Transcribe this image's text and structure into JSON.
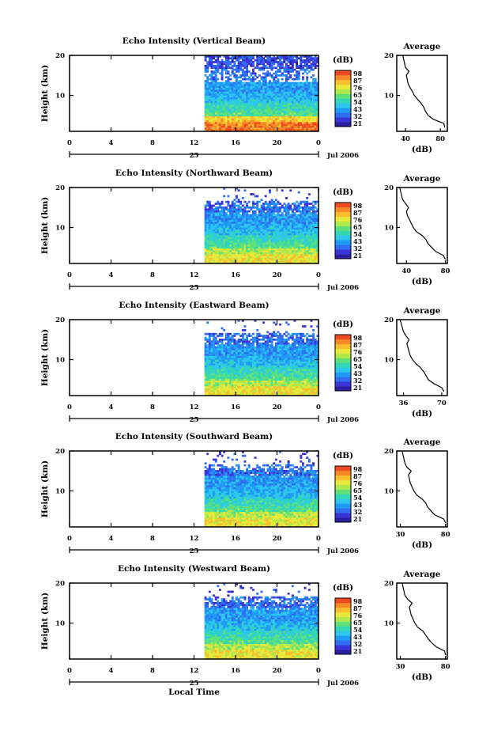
{
  "figure": {
    "xlabel": "Local Time",
    "day_label": "25",
    "month_label": "Jul 2006",
    "colorbar_unit": "(dB)"
  },
  "chart_data": [
    {
      "type": "heatmap",
      "title": "Echo Intensity (Vertical Beam)",
      "ylabel": "Height (km)",
      "x_ticks": [
        "0",
        "4",
        "8",
        "12",
        "16",
        "20",
        "0"
      ],
      "y_ticks": [
        "20",
        "10"
      ],
      "xlim": [
        0,
        24
      ],
      "ylim": [
        1,
        20
      ],
      "data_start_hour": 13,
      "colorbar_ticks": [
        "98",
        "87",
        "76",
        "65",
        "54",
        "43",
        "32",
        "21"
      ],
      "average": {
        "title": "Average",
        "xlabel": "(dB)",
        "x_ticks": [
          "40",
          "80"
        ],
        "y_ticks": [
          "20",
          "10"
        ],
        "xlim": [
          30,
          88
        ],
        "profile": [
          [
            2,
            85
          ],
          [
            3,
            84
          ],
          [
            4,
            72
          ],
          [
            5,
            66
          ],
          [
            6,
            63
          ],
          [
            7,
            61
          ],
          [
            8,
            58
          ],
          [
            9,
            54
          ],
          [
            10,
            50
          ],
          [
            11,
            48
          ],
          [
            12,
            45
          ],
          [
            13,
            43
          ],
          [
            14,
            42
          ],
          [
            15,
            41
          ],
          [
            16,
            44
          ],
          [
            17,
            40
          ],
          [
            18,
            39
          ],
          [
            19,
            38
          ],
          [
            20,
            37
          ]
        ]
      }
    },
    {
      "type": "heatmap",
      "title": "Echo Intensity (Northward Beam)",
      "ylabel": "Height (km)",
      "x_ticks": [
        "0",
        "4",
        "8",
        "12",
        "16",
        "20",
        "0"
      ],
      "y_ticks": [
        "20",
        "10"
      ],
      "xlim": [
        0,
        24
      ],
      "ylim": [
        1,
        20
      ],
      "data_start_hour": 13,
      "colorbar_ticks": [
        "98",
        "87",
        "76",
        "65",
        "54",
        "43",
        "32",
        "21"
      ],
      "average": {
        "title": "Average",
        "xlabel": "(dB)",
        "x_ticks": [
          "40",
          "80"
        ],
        "y_ticks": [
          "20",
          "10"
        ],
        "xlim": [
          30,
          82
        ],
        "profile": [
          [
            2,
            80
          ],
          [
            3,
            78
          ],
          [
            4,
            70
          ],
          [
            5,
            66
          ],
          [
            6,
            62
          ],
          [
            7,
            60
          ],
          [
            8,
            56
          ],
          [
            9,
            50
          ],
          [
            10,
            47
          ],
          [
            11,
            45
          ],
          [
            12,
            43
          ],
          [
            13,
            41
          ],
          [
            14,
            40
          ],
          [
            15,
            42
          ],
          [
            16,
            39
          ],
          [
            17,
            36
          ],
          [
            18,
            35
          ],
          [
            19,
            34
          ],
          [
            20,
            33
          ]
        ]
      }
    },
    {
      "type": "heatmap",
      "title": "Echo Intensity (Eastward Beam)",
      "ylabel": "Height (km)",
      "x_ticks": [
        "0",
        "4",
        "8",
        "12",
        "16",
        "20",
        "0"
      ],
      "y_ticks": [
        "20",
        "10"
      ],
      "xlim": [
        0,
        24
      ],
      "ylim": [
        1,
        20
      ],
      "data_start_hour": 13,
      "colorbar_ticks": [
        "98",
        "87",
        "76",
        "65",
        "54",
        "43",
        "32",
        "21"
      ],
      "average": {
        "title": "Average",
        "xlabel": "(dB)",
        "x_ticks": [
          "36",
          "70"
        ],
        "y_ticks": [
          "20",
          "10"
        ],
        "xlim": [
          30,
          75
        ],
        "profile": [
          [
            2,
            72
          ],
          [
            3,
            70
          ],
          [
            4,
            63
          ],
          [
            5,
            58
          ],
          [
            6,
            56
          ],
          [
            7,
            54
          ],
          [
            8,
            51
          ],
          [
            9,
            47
          ],
          [
            10,
            44
          ],
          [
            11,
            42
          ],
          [
            12,
            41
          ],
          [
            13,
            40
          ],
          [
            14,
            39
          ],
          [
            15,
            41
          ],
          [
            16,
            38
          ],
          [
            17,
            36
          ],
          [
            18,
            35
          ],
          [
            19,
            34
          ],
          [
            20,
            33
          ]
        ]
      }
    },
    {
      "type": "heatmap",
      "title": "Echo Intensity (Southward Beam)",
      "ylabel": "Height (km)",
      "x_ticks": [
        "0",
        "4",
        "8",
        "12",
        "16",
        "20",
        "0"
      ],
      "y_ticks": [
        "20",
        "10"
      ],
      "xlim": [
        0,
        24
      ],
      "ylim": [
        1,
        20
      ],
      "data_start_hour": 13,
      "colorbar_ticks": [
        "98",
        "87",
        "76",
        "65",
        "54",
        "43",
        "32",
        "21"
      ],
      "average": {
        "title": "Average",
        "xlabel": "(dB)",
        "x_ticks": [
          "30",
          "80"
        ],
        "y_ticks": [
          "20",
          "10"
        ],
        "xlim": [
          26,
          82
        ],
        "profile": [
          [
            2,
            80
          ],
          [
            3,
            78
          ],
          [
            4,
            68
          ],
          [
            5,
            64
          ],
          [
            6,
            60
          ],
          [
            7,
            58
          ],
          [
            8,
            54
          ],
          [
            9,
            48
          ],
          [
            10,
            45
          ],
          [
            11,
            43
          ],
          [
            12,
            41
          ],
          [
            13,
            40
          ],
          [
            14,
            39
          ],
          [
            15,
            42
          ],
          [
            16,
            37
          ],
          [
            17,
            35
          ],
          [
            18,
            34
          ],
          [
            19,
            33
          ],
          [
            20,
            32
          ]
        ]
      }
    },
    {
      "type": "heatmap",
      "title": "Echo Intensity (Westward Beam)",
      "ylabel": "Height (km)",
      "x_ticks": [
        "0",
        "4",
        "8",
        "12",
        "16",
        "20",
        "0"
      ],
      "y_ticks": [
        "20",
        "10"
      ],
      "xlim": [
        0,
        24
      ],
      "ylim": [
        1,
        20
      ],
      "data_start_hour": 13,
      "colorbar_ticks": [
        "98",
        "87",
        "76",
        "65",
        "54",
        "43",
        "32",
        "21"
      ],
      "average": {
        "title": "Average",
        "xlabel": "(dB)",
        "x_ticks": [
          "30",
          "80"
        ],
        "y_ticks": [
          "20",
          "10"
        ],
        "xlim": [
          26,
          82
        ],
        "profile": [
          [
            2,
            80
          ],
          [
            3,
            79
          ],
          [
            4,
            70
          ],
          [
            5,
            65
          ],
          [
            6,
            61
          ],
          [
            7,
            58
          ],
          [
            8,
            55
          ],
          [
            9,
            49
          ],
          [
            10,
            46
          ],
          [
            11,
            44
          ],
          [
            12,
            42
          ],
          [
            13,
            41
          ],
          [
            14,
            40
          ],
          [
            15,
            43
          ],
          [
            16,
            38
          ],
          [
            17,
            35
          ],
          [
            18,
            34
          ],
          [
            19,
            33
          ],
          [
            20,
            32
          ]
        ]
      }
    }
  ]
}
